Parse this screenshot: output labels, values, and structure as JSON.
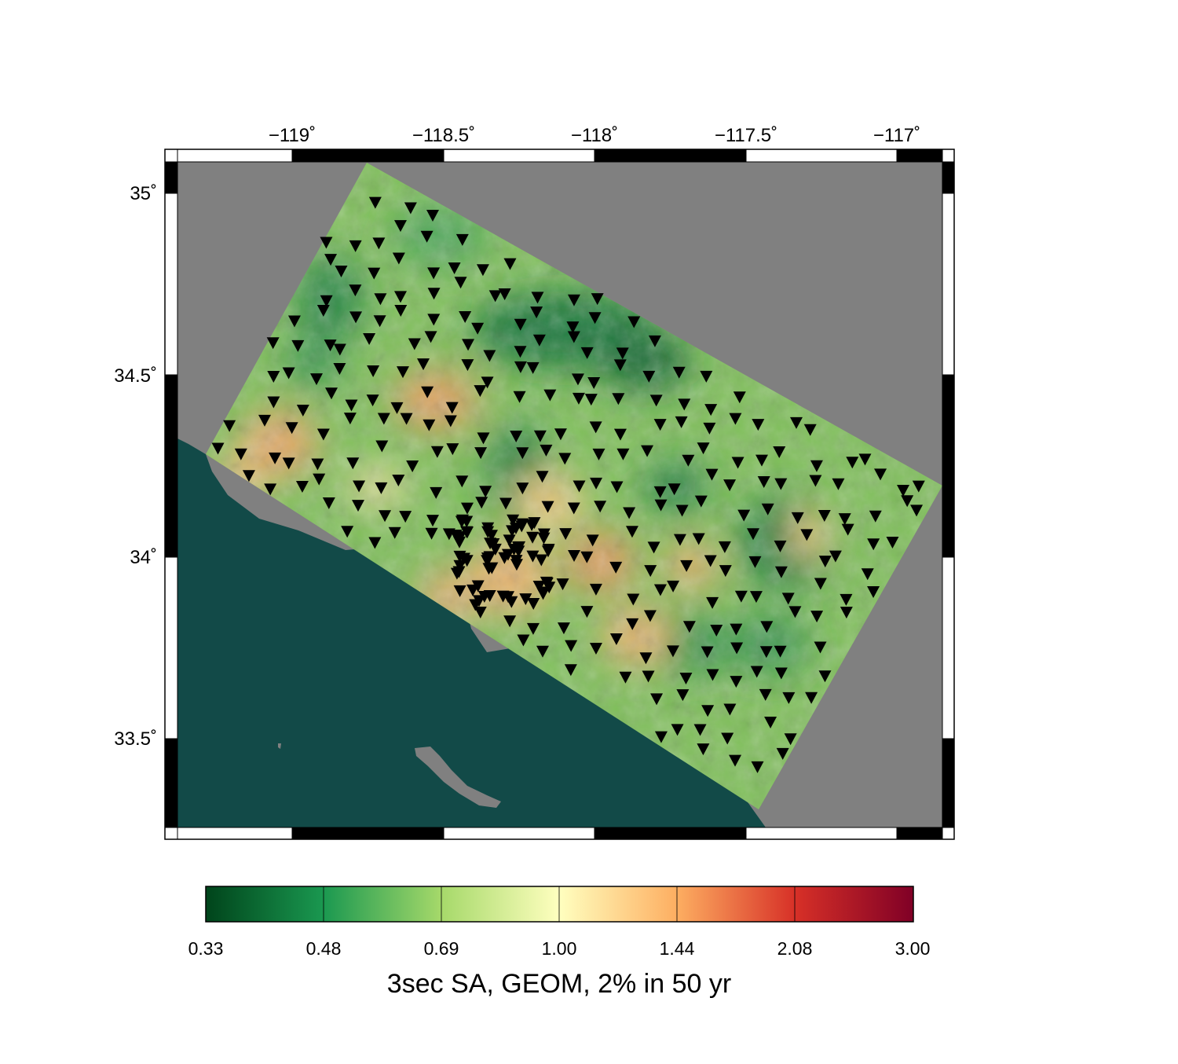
{
  "map": {
    "longitude_labels": [
      "−119˚",
      "−118.5˚",
      "−118˚",
      "−117.5˚",
      "−117˚"
    ],
    "latitude_labels": [
      "35˚",
      "34.5˚",
      "34˚",
      "33.5˚"
    ],
    "station_marker": "inverted-triangle",
    "colors": {
      "ocean": "#124a48",
      "no_data": "#808080",
      "station": "#000000"
    }
  },
  "colorbar": {
    "title": "3sec SA, GEOM, 2% in 50 yr",
    "tick_labels": [
      "0.33",
      "0.48",
      "0.69",
      "1.00",
      "1.44",
      "2.08",
      "3.00"
    ],
    "colors": [
      "#00441b",
      "#1a9850",
      "#a6d96a",
      "#ffffbf",
      "#fdae61",
      "#d73027",
      "#800026"
    ]
  }
}
